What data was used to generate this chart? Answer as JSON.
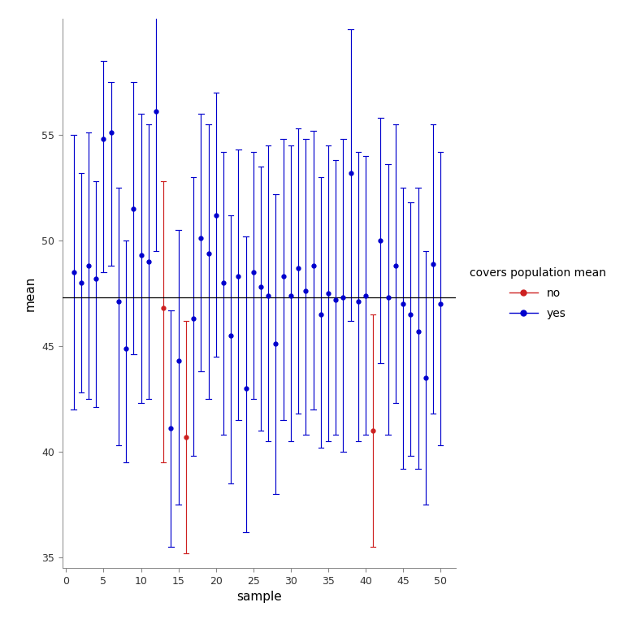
{
  "true_mean": 47.3,
  "n_samples": 50,
  "red_samples": [
    13,
    16,
    41
  ],
  "sample_means": [
    48.5,
    48.0,
    48.8,
    48.2,
    54.8,
    55.1,
    47.1,
    44.9,
    51.5,
    49.3,
    49.0,
    56.1,
    46.8,
    41.1,
    44.3,
    40.7,
    46.3,
    50.1,
    49.4,
    51.2,
    48.0,
    45.5,
    48.3,
    43.0,
    48.5,
    47.8,
    47.4,
    45.1,
    48.3,
    47.4,
    48.7,
    47.6,
    48.8,
    46.5,
    47.5,
    47.2,
    47.3,
    53.2,
    47.1,
    47.4,
    41.0,
    50.0,
    47.3,
    48.8,
    47.0,
    46.5,
    45.7,
    43.5,
    48.9,
    47.0
  ],
  "ci_lower": [
    42.0,
    42.8,
    42.5,
    42.1,
    48.5,
    48.8,
    40.3,
    39.5,
    44.6,
    42.3,
    42.5,
    49.5,
    39.5,
    35.5,
    37.5,
    35.2,
    39.8,
    43.8,
    42.5,
    44.5,
    40.8,
    38.5,
    41.5,
    36.2,
    42.5,
    41.0,
    40.5,
    38.0,
    41.5,
    40.5,
    41.8,
    40.8,
    42.0,
    40.2,
    40.5,
    40.8,
    40.0,
    46.2,
    40.5,
    40.8,
    35.5,
    44.2,
    40.8,
    42.3,
    39.2,
    39.8,
    39.2,
    37.5,
    41.8,
    40.3
  ],
  "ci_upper": [
    55.0,
    53.2,
    55.1,
    52.8,
    58.5,
    57.5,
    52.5,
    50.0,
    57.5,
    56.0,
    55.5,
    61.5,
    52.8,
    46.7,
    50.5,
    46.2,
    53.0,
    56.0,
    55.5,
    57.0,
    54.2,
    51.2,
    54.3,
    50.2,
    54.2,
    53.5,
    54.5,
    52.2,
    54.8,
    54.5,
    55.3,
    54.8,
    55.2,
    53.0,
    54.5,
    53.8,
    54.8,
    60.0,
    54.2,
    54.0,
    46.5,
    55.8,
    53.6,
    55.5,
    52.5,
    51.8,
    52.5,
    49.5,
    55.5,
    54.2
  ],
  "blue_color": "#0000CD",
  "red_color": "#CD2020",
  "mean_line_color": "#000000",
  "background_color": "#ffffff",
  "xlabel": "sample",
  "ylabel": "mean",
  "xlim": [
    -0.5,
    52
  ],
  "ylim": [
    34.5,
    60.5
  ],
  "yticks": [
    35,
    40,
    45,
    50,
    55
  ],
  "xticks": [
    0,
    5,
    10,
    15,
    20,
    25,
    30,
    35,
    40,
    45,
    50
  ],
  "figsize": [
    7.68,
    7.68
  ],
  "dpi": 100
}
